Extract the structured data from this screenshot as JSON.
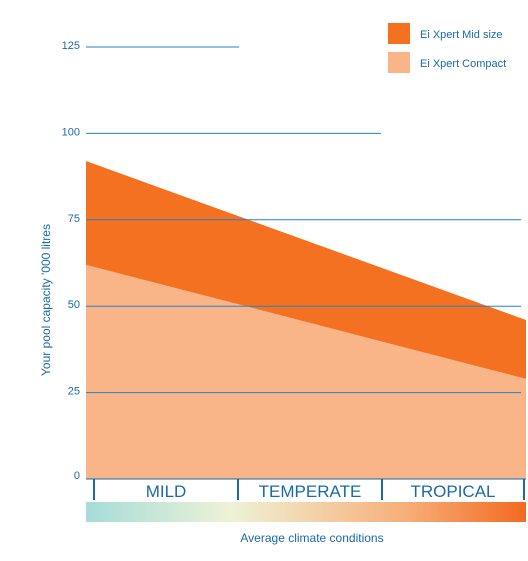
{
  "chart_data": {
    "type": "area",
    "x": [
      "MILD",
      "TROPICAL"
    ],
    "categories": [
      "MILD",
      "TEMPERATE",
      "TROPICAL"
    ],
    "series": [
      {
        "name": "Ei Xpert Mid size",
        "values": [
          92,
          46
        ],
        "color": "#f37121"
      },
      {
        "name": "Ei Xpert Compact",
        "values": [
          62,
          29
        ],
        "color": "#f9b487"
      }
    ],
    "yticks": [
      0,
      25,
      50,
      75,
      100,
      125
    ],
    "ylim": [
      0,
      125
    ],
    "ylabel": "Your pool capacity '000 litres",
    "xlabel": "Average climate conditions",
    "grid": true,
    "legend_position": "top-right",
    "gradient_colors": [
      "#a6dcd9",
      "#eef2d6",
      "#f7b07b",
      "#f26a21"
    ]
  }
}
